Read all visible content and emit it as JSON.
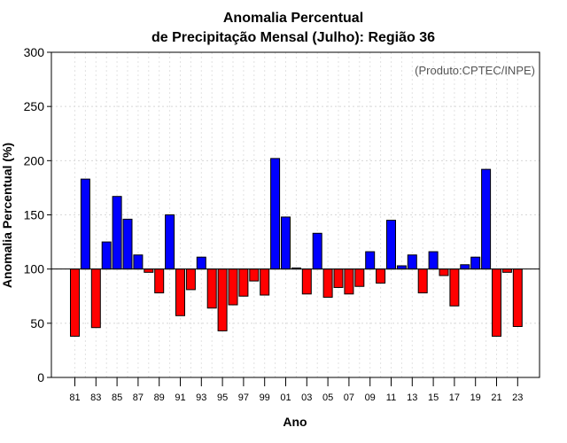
{
  "chart_data": {
    "type": "bar",
    "title": "Anomalia Percentual",
    "subtitle": "de Precipitação Mensal (Julho): Região 36",
    "xlabel": "Ano",
    "ylabel": "Anomalia Percentual (%)",
    "annotation": "(Produto:CPTEC/INPE)",
    "baseline": 100,
    "ylim": [
      0,
      300
    ],
    "yticks": [
      0,
      50,
      100,
      150,
      200,
      250,
      300
    ],
    "grid": true,
    "colors": {
      "above": "#0000ff",
      "below": "#ff0000"
    },
    "categories": [
      "81",
      "82",
      "83",
      "84",
      "85",
      "86",
      "87",
      "88",
      "89",
      "90",
      "91",
      "92",
      "93",
      "94",
      "95",
      "96",
      "97",
      "98",
      "99",
      "00",
      "01",
      "02",
      "03",
      "04",
      "05",
      "06",
      "07",
      "08",
      "09",
      "10",
      "11",
      "12",
      "13",
      "14",
      "15",
      "16",
      "17",
      "18",
      "19",
      "20",
      "21",
      "22",
      "23"
    ],
    "xtick_labels": [
      "81",
      "83",
      "85",
      "87",
      "89",
      "91",
      "93",
      "95",
      "97",
      "99",
      "01",
      "03",
      "05",
      "07",
      "09",
      "11",
      "13",
      "15",
      "17",
      "19",
      "21",
      "23"
    ],
    "values": [
      38,
      183,
      46,
      125,
      167,
      146,
      113,
      97,
      78,
      150,
      57,
      81,
      111,
      64,
      43,
      67,
      75,
      89,
      76,
      202,
      148,
      101,
      77,
      133,
      74,
      83,
      77,
      84,
      116,
      87,
      145,
      103,
      113,
      78,
      116,
      94,
      66,
      104,
      111,
      192,
      38,
      97,
      47
    ]
  }
}
